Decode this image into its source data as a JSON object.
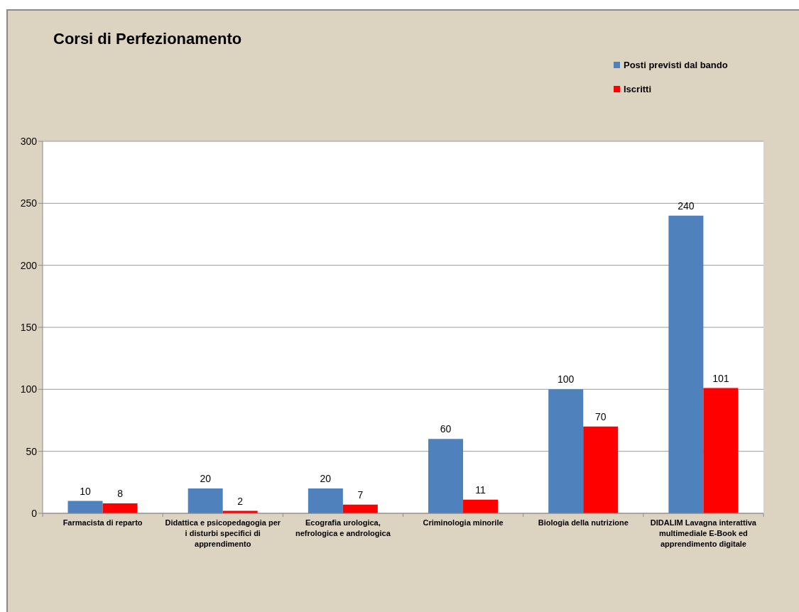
{
  "chart_data": {
    "type": "bar",
    "title": "Corsi di Perfezionamento",
    "categories": [
      "Farmacista di reparto",
      "Didattica e psicopedagogia per i disturbi specifici di apprendimento",
      "Ecografia urologica, nefrologica e andrologica",
      "Criminologia minorile",
      "Biologia della nutrizione",
      "DIDALIM Lavagna interattiva multimediale E-Book ed apprendimento digitale"
    ],
    "series": [
      {
        "name": "Posti previsti dal bando",
        "color": "#4f81bd",
        "values": [
          10,
          20,
          20,
          60,
          100,
          240
        ]
      },
      {
        "name": "Iscritti",
        "color": "#ff0000",
        "values": [
          8,
          2,
          7,
          11,
          70,
          101
        ]
      }
    ],
    "ylim": [
      0,
      300
    ],
    "yticks": [
      0,
      50,
      100,
      150,
      200,
      250,
      300
    ],
    "grid": "y",
    "legend": "top right",
    "data_labels": true
  }
}
